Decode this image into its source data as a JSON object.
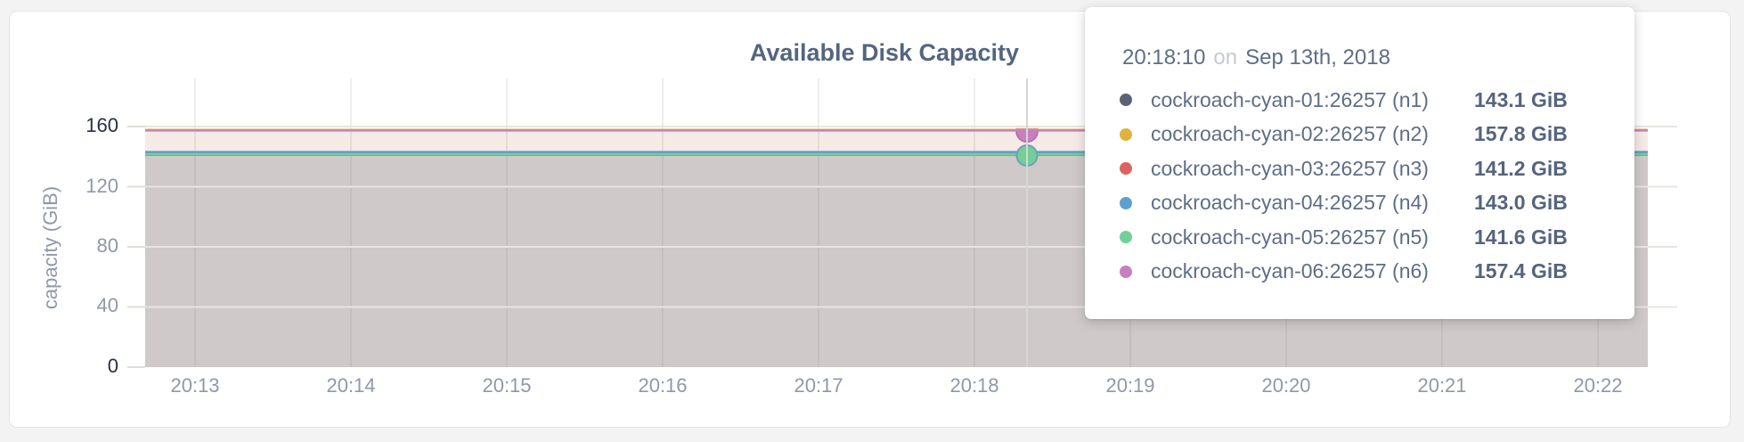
{
  "chart_data": {
    "type": "area",
    "title": "Available Disk Capacity",
    "ylabel": "capacity (GiB)",
    "ylim": [
      0,
      160
    ],
    "y_ticks": [
      0,
      40,
      80,
      120,
      160
    ],
    "x_ticks": [
      "20:13",
      "20:14",
      "20:15",
      "20:16",
      "20:17",
      "20:18",
      "20:19",
      "20:20",
      "20:21",
      "20:22"
    ],
    "grid": true,
    "legend_position": "tooltip",
    "series": [
      {
        "name": "cockroach-cyan-01:26257 (n1)",
        "node": "n1",
        "color": "#5b6377",
        "value_gib": 143.1,
        "value_label": "143.1 GiB"
      },
      {
        "name": "cockroach-cyan-02:26257 (n2)",
        "node": "n2",
        "color": "#e0b13e",
        "value_gib": 157.8,
        "value_label": "157.8 GiB"
      },
      {
        "name": "cockroach-cyan-03:26257 (n3)",
        "node": "n3",
        "color": "#dd6360",
        "value_gib": 141.2,
        "value_label": "141.2 GiB"
      },
      {
        "name": "cockroach-cyan-04:26257 (n4)",
        "node": "n4",
        "color": "#5d9fd3",
        "value_gib": 143.0,
        "value_label": "143.0 GiB"
      },
      {
        "name": "cockroach-cyan-05:26257 (n5)",
        "node": "n5",
        "color": "#72cf97",
        "value_gib": 141.6,
        "value_label": "141.6 GiB"
      },
      {
        "name": "cockroach-cyan-06:26257 (n6)",
        "node": "n6",
        "color": "#c77fc0",
        "value_gib": 157.4,
        "value_label": "157.4 GiB"
      }
    ],
    "hover": {
      "time": "20:18:10",
      "joiner": "on",
      "date": "Sep 13th, 2018",
      "hovered_x_label": "20:18",
      "marker_series": [
        "n6",
        "n5"
      ]
    }
  }
}
